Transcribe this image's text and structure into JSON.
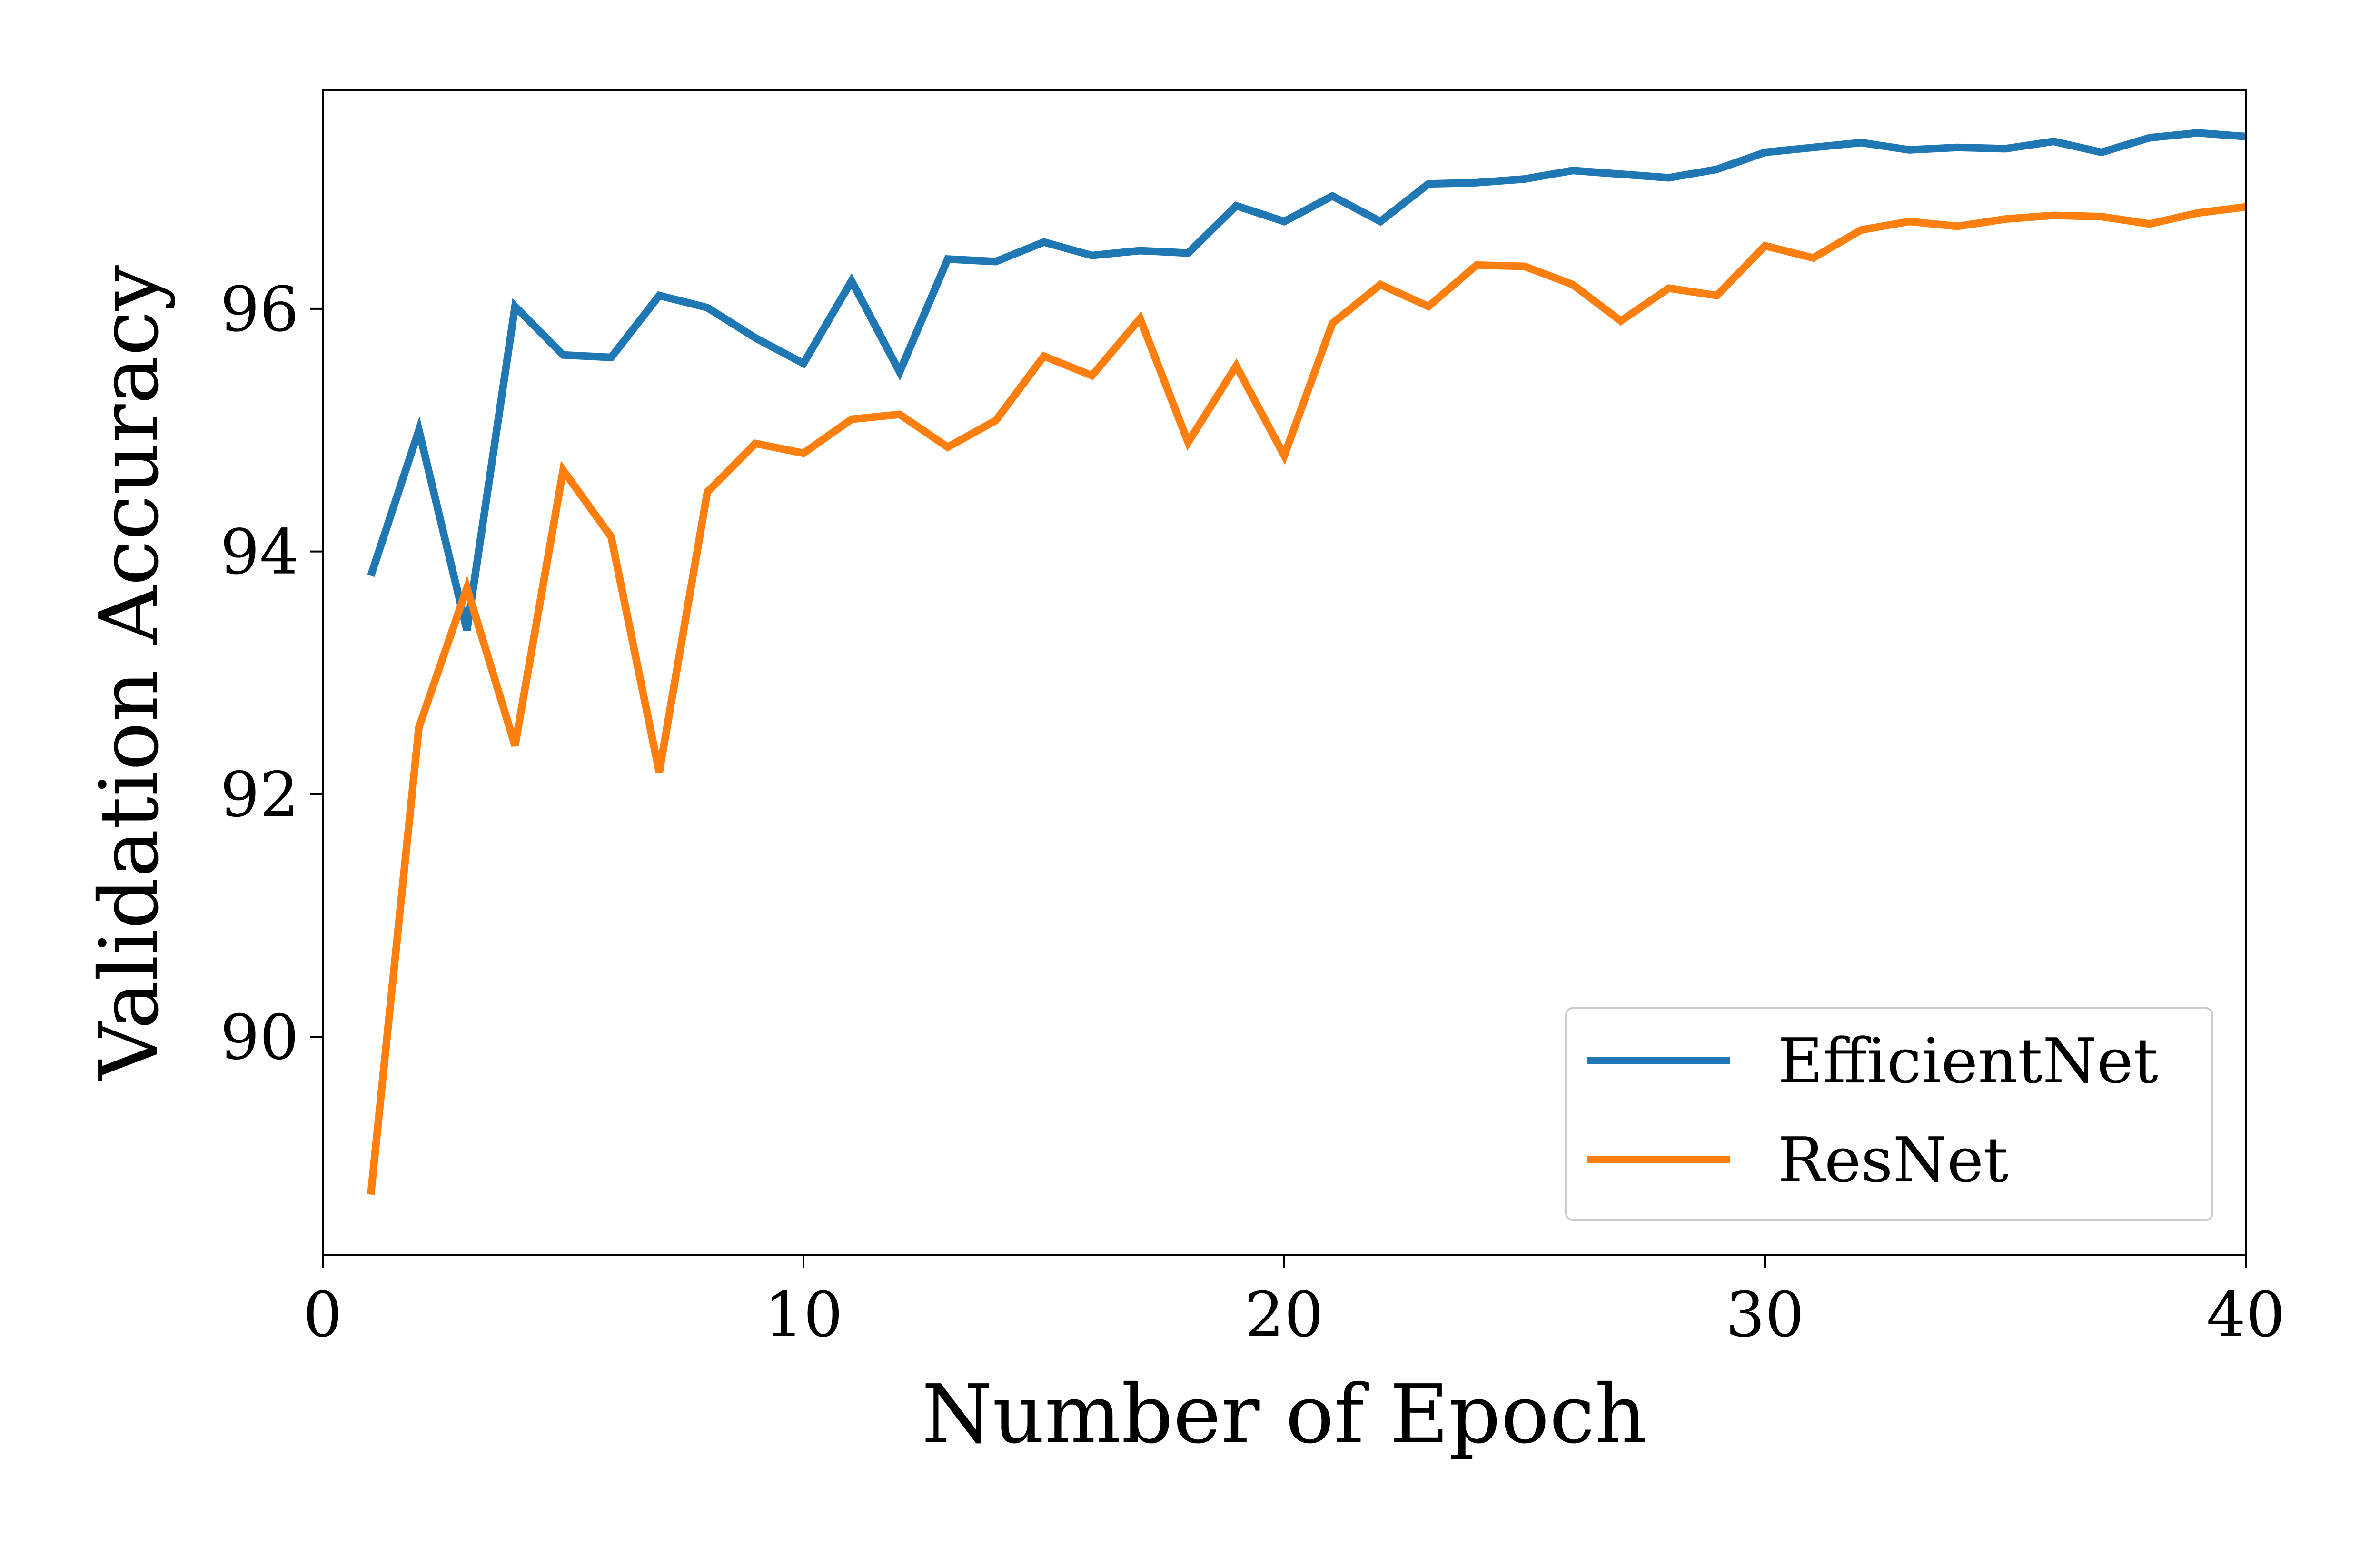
{
  "chart_data": {
    "type": "line",
    "title": "",
    "xlabel": "Number of Epoch",
    "ylabel": "Validation Accuracy",
    "xlim": [
      0,
      40
    ],
    "ylim": [
      88.2,
      97.8
    ],
    "xticks": [
      0,
      10,
      20,
      30,
      40
    ],
    "yticks": [
      90,
      92,
      94,
      96
    ],
    "grid": false,
    "legend_position": "lower-right",
    "x": [
      1,
      2,
      3,
      4,
      5,
      6,
      7,
      8,
      9,
      10,
      11,
      12,
      13,
      14,
      15,
      16,
      17,
      18,
      19,
      20,
      21,
      22,
      23,
      24,
      25,
      26,
      27,
      28,
      29,
      30,
      31,
      32,
      33,
      34,
      35,
      36,
      37,
      38,
      39,
      40
    ],
    "series": [
      {
        "name": "EfficientNet",
        "color": "#1f77b4",
        "values": [
          93.8,
          95.0,
          93.35,
          96.02,
          95.62,
          95.6,
          96.11,
          96.01,
          95.76,
          95.55,
          96.23,
          95.48,
          96.41,
          96.39,
          96.55,
          96.44,
          96.48,
          96.46,
          96.85,
          96.72,
          96.93,
          96.72,
          97.03,
          97.04,
          97.07,
          97.14,
          97.11,
          97.08,
          97.15,
          97.29,
          97.33,
          97.37,
          97.31,
          97.33,
          97.32,
          97.38,
          97.29,
          97.41,
          97.45,
          97.42
        ]
      },
      {
        "name": "ResNet",
        "color": "#ff7f0e",
        "values": [
          88.7,
          92.55,
          93.7,
          92.4,
          94.67,
          94.12,
          92.18,
          94.49,
          94.89,
          94.81,
          95.09,
          95.13,
          94.86,
          95.08,
          95.61,
          95.45,
          95.92,
          94.9,
          95.53,
          94.79,
          95.88,
          96.2,
          96.02,
          96.36,
          96.35,
          96.2,
          95.9,
          96.17,
          96.11,
          96.52,
          96.42,
          96.65,
          96.72,
          96.68,
          96.74,
          96.77,
          96.76,
          96.7,
          96.79,
          96.84
        ]
      }
    ]
  }
}
